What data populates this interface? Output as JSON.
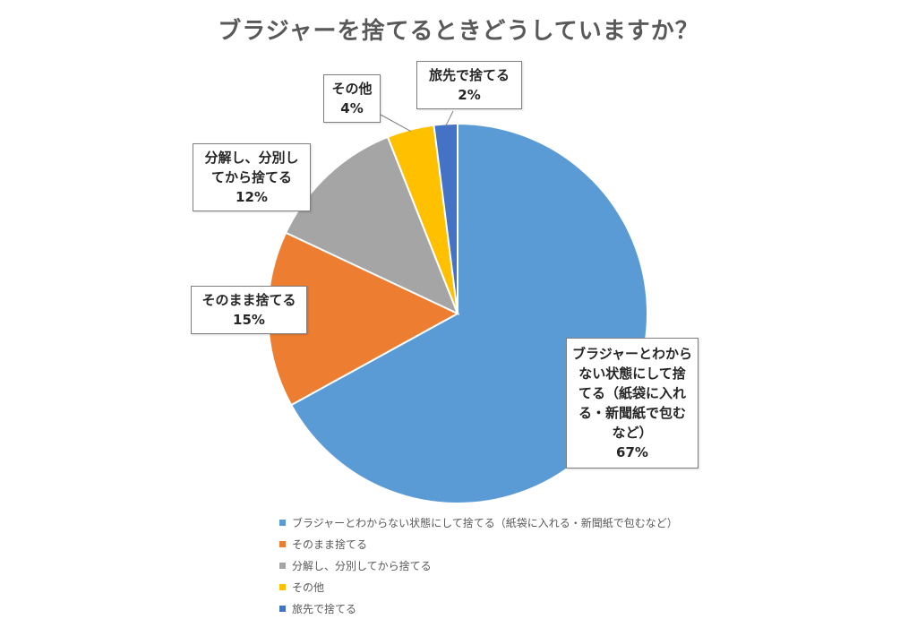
{
  "chart_data": {
    "type": "pie",
    "title": "ブラジャーを捨てるときどうしていますか？",
    "slices": [
      {
        "label": "ブラジャーとわからない状態にして捨てる（紙袋に入れる・新聞紙で包むなど）",
        "value": 67,
        "display": "67%",
        "color": "#5b9bd5"
      },
      {
        "label": "そのまま捨てる",
        "value": 15,
        "display": "15%",
        "color": "#ed7d31"
      },
      {
        "label": "分解し、分別してから捨てる",
        "value": 12,
        "display": "12%",
        "color": "#a5a5a5"
      },
      {
        "label": "その他",
        "value": 4,
        "display": "4%",
        "color": "#ffc000"
      },
      {
        "label": "旅先で捨てる",
        "value": 2,
        "display": "2%",
        "color": "#4472c4"
      }
    ],
    "legend_position": "bottom"
  }
}
